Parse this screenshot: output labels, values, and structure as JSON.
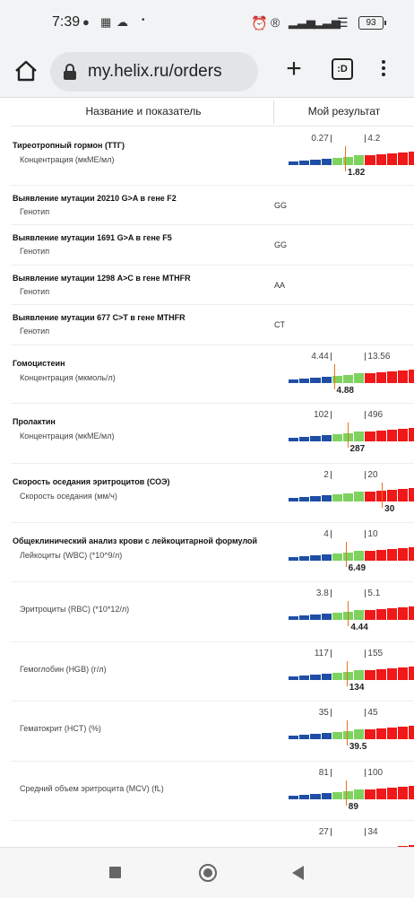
{
  "status": {
    "time": "7:39",
    "battery": "93"
  },
  "browser": {
    "url": "my.helix.ru/orders",
    "tab_label": ":D"
  },
  "table": {
    "col_name": "Название и показатель",
    "col_result": "Мой результат"
  },
  "rows": [
    {
      "title": "Тиреотропный гормон (ТТГ)",
      "sub": "Концентрация (мкМЕ/мл)",
      "type": "gauge",
      "lo": "0.27",
      "hi": "4.2",
      "value": "1.82",
      "lo_num": 0.27,
      "hi_num": 4.2,
      "val_num": 1.82
    },
    {
      "title": "Выявление мутации 20210 G>A в гене F2",
      "sub": "Генотип",
      "type": "genotype",
      "genotype": "GG"
    },
    {
      "title": "Выявление мутации 1691 G>A в гене F5",
      "sub": "Генотип",
      "type": "genotype",
      "genotype": "GG"
    },
    {
      "title": "Выявление мутации 1298 A>C в гене MTHFR",
      "sub": "Генотип",
      "type": "genotype",
      "genotype": "AA"
    },
    {
      "title": "Выявление мутации 677 C>T в гене MTHFR",
      "sub": "Генотип",
      "type": "genotype",
      "genotype": "CT"
    },
    {
      "title": "Гомоцистеин",
      "sub": "Концентрация (мкмоль/л)",
      "type": "gauge",
      "lo": "4.44",
      "hi": "13.56",
      "value": "4.88",
      "lo_num": 4.44,
      "hi_num": 13.56,
      "val_num": 4.88
    },
    {
      "title": "Пролактин",
      "sub": "Концентрация (мкМЕ/мл)",
      "type": "gauge",
      "lo": "102",
      "hi": "496",
      "value": "287",
      "lo_num": 102,
      "hi_num": 496,
      "val_num": 287
    },
    {
      "title": "Скорость оседания эритроцитов (СОЭ)",
      "sub": "Скорость оседания (мм/ч)",
      "type": "gauge",
      "lo": "2",
      "hi": "20",
      "value": "30",
      "lo_num": 2,
      "hi_num": 20,
      "val_num": 30
    },
    {
      "title": "Общеклинический анализ крови с лейкоцитарной формулой",
      "sub": "Лейкоциты (WBC) (*10^9/л)",
      "type": "gauge",
      "lo": "4",
      "hi": "10",
      "value": "6.49",
      "lo_num": 4,
      "hi_num": 10,
      "val_num": 6.49
    },
    {
      "title": "",
      "sub": "Эритроциты (RBC) (*10*12/л)",
      "type": "gauge",
      "lo": "3.8",
      "hi": "5.1",
      "value": "4.44",
      "lo_num": 3.8,
      "hi_num": 5.1,
      "val_num": 4.44
    },
    {
      "title": "",
      "sub": "Гемоглобин (HGB) (г/л)",
      "type": "gauge",
      "lo": "117",
      "hi": "155",
      "value": "134",
      "lo_num": 117,
      "hi_num": 155,
      "val_num": 134
    },
    {
      "title": "",
      "sub": "Гематокрит (HCT) (%)",
      "type": "gauge",
      "lo": "35",
      "hi": "45",
      "value": "39.5",
      "lo_num": 35,
      "hi_num": 45,
      "val_num": 39.5
    },
    {
      "title": "",
      "sub": "Средний объем эритроцита (MCV) (fL)",
      "type": "gauge",
      "lo": "81",
      "hi": "100",
      "value": "89",
      "lo_num": 81,
      "hi_num": 100,
      "val_num": 89
    },
    {
      "title": "",
      "sub": "",
      "type": "gauge",
      "lo": "27",
      "hi": "34",
      "value": "",
      "lo_num": 27,
      "hi_num": 34,
      "val_num": null
    }
  ],
  "colors": {
    "low": "#1f4fa5",
    "normal": "#7ed35f",
    "high": "#f01818",
    "marker": "#e8731d"
  }
}
